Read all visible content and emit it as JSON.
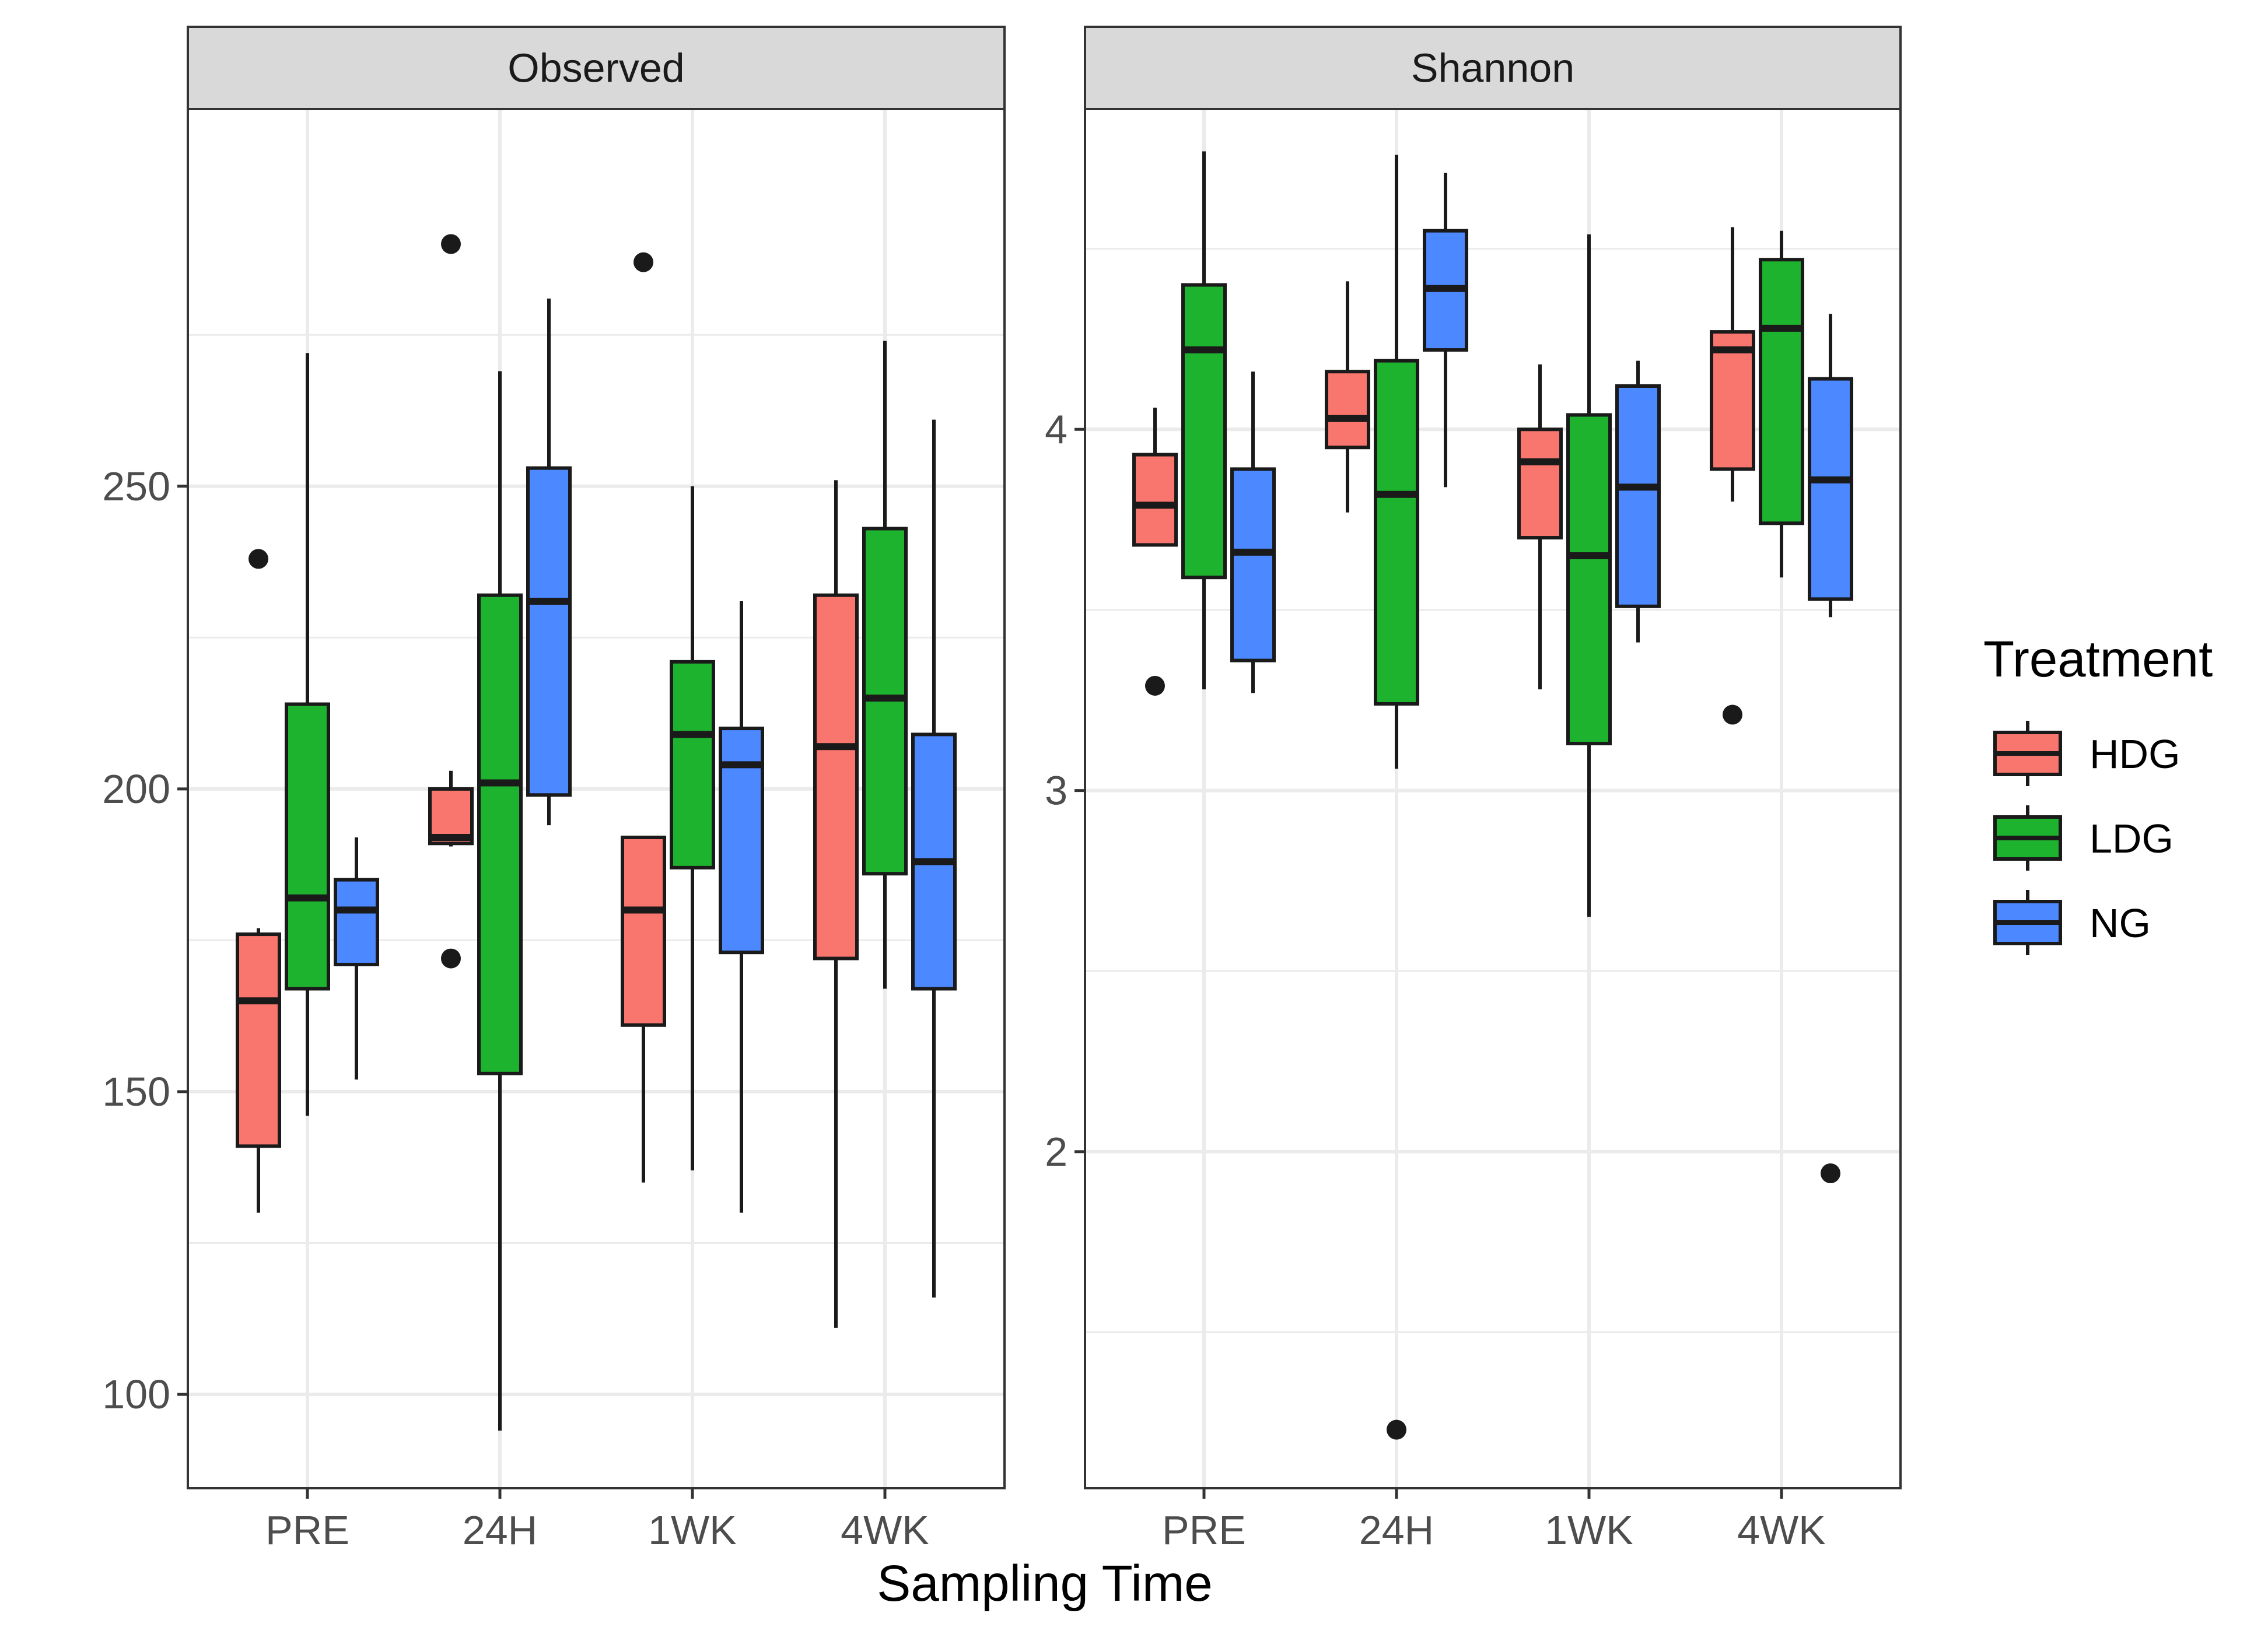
{
  "chart_data": {
    "type": "boxplot",
    "xlabel": "Sampling Time",
    "categories": [
      "PRE",
      "24H",
      "1WK",
      "4WK"
    ],
    "legend": {
      "title": "Treatment",
      "position": "right",
      "entries": [
        "HDG",
        "LDG",
        "NG"
      ]
    },
    "colors": {
      "HDG": "#F8766D",
      "LDG": "#1DB32E",
      "NG": "#4C88FF"
    },
    "facets": [
      {
        "name": "Observed",
        "ylim": [
          84.5,
          312.3
        ],
        "yticks": [
          100,
          150,
          200,
          250
        ],
        "ytick_labels": [
          "100",
          "150",
          "200",
          "250"
        ],
        "series": {
          "HDG": [
            {
              "category": "PRE",
              "whisker_low": 130,
              "q1": 141,
              "median": 165,
              "q3": 176,
              "whisker_high": 177,
              "outliers": [
                238
              ]
            },
            {
              "category": "24H",
              "whisker_low": 190.5,
              "q1": 191,
              "median": 192,
              "q3": 200,
              "whisker_high": 203,
              "outliers": [
                172,
                290
              ]
            },
            {
              "category": "1WK",
              "whisker_low": 135,
              "q1": 161,
              "median": 180,
              "q3": 192,
              "whisker_high": 192,
              "outliers": [
                287
              ]
            },
            {
              "category": "4WK",
              "whisker_low": 111,
              "q1": 172,
              "median": 207,
              "q3": 232,
              "whisker_high": 251,
              "outliers": []
            }
          ],
          "LDG": [
            {
              "category": "PRE",
              "whisker_low": 146,
              "q1": 167,
              "median": 182,
              "q3": 214,
              "whisker_high": 272,
              "outliers": []
            },
            {
              "category": "24H",
              "whisker_low": 94,
              "q1": 153,
              "median": 201,
              "q3": 232,
              "whisker_high": 269,
              "outliers": []
            },
            {
              "category": "1WK",
              "whisker_low": 137,
              "q1": 187,
              "median": 209,
              "q3": 221,
              "whisker_high": 250,
              "outliers": []
            },
            {
              "category": "4WK",
              "whisker_low": 167,
              "q1": 186,
              "median": 215,
              "q3": 243,
              "whisker_high": 274,
              "outliers": []
            }
          ],
          "NG": [
            {
              "category": "PRE",
              "whisker_low": 152,
              "q1": 171,
              "median": 180,
              "q3": 185,
              "whisker_high": 192,
              "outliers": []
            },
            {
              "category": "24H",
              "whisker_low": 194,
              "q1": 199,
              "median": 231,
              "q3": 253,
              "whisker_high": 281,
              "outliers": []
            },
            {
              "category": "1WK",
              "whisker_low": 130,
              "q1": 173,
              "median": 204,
              "q3": 210,
              "whisker_high": 231,
              "outliers": []
            },
            {
              "category": "4WK",
              "whisker_low": 116,
              "q1": 167,
              "median": 188,
              "q3": 209,
              "whisker_high": 261,
              "outliers": []
            }
          ]
        }
      },
      {
        "name": "Shannon",
        "ylim": [
          1.068,
          4.887
        ],
        "yticks": [
          2,
          3,
          4
        ],
        "ytick_labels": [
          "2",
          "3",
          "4"
        ],
        "series": {
          "HDG": [
            {
              "category": "PRE",
              "whisker_low": 3.68,
              "q1": 3.68,
              "median": 3.79,
              "q3": 3.93,
              "whisker_high": 4.06,
              "outliers": [
                3.29
              ]
            },
            {
              "category": "24H",
              "whisker_low": 3.77,
              "q1": 3.95,
              "median": 4.03,
              "q3": 4.16,
              "whisker_high": 4.41,
              "outliers": []
            },
            {
              "category": "1WK",
              "whisker_low": 3.28,
              "q1": 3.7,
              "median": 3.91,
              "q3": 4.0,
              "whisker_high": 4.18,
              "outliers": []
            },
            {
              "category": "4WK",
              "whisker_low": 3.8,
              "q1": 3.89,
              "median": 4.22,
              "q3": 4.27,
              "whisker_high": 4.56,
              "outliers": [
                3.21
              ]
            }
          ],
          "LDG": [
            {
              "category": "PRE",
              "whisker_low": 3.28,
              "q1": 3.59,
              "median": 4.22,
              "q3": 4.4,
              "whisker_high": 4.77,
              "outliers": []
            },
            {
              "category": "24H",
              "whisker_low": 3.06,
              "q1": 3.24,
              "median": 3.82,
              "q3": 4.19,
              "whisker_high": 4.76,
              "outliers": [
                1.23
              ]
            },
            {
              "category": "1WK",
              "whisker_low": 2.65,
              "q1": 3.13,
              "median": 3.65,
              "q3": 4.04,
              "whisker_high": 4.54,
              "outliers": []
            },
            {
              "category": "4WK",
              "whisker_low": 3.59,
              "q1": 3.74,
              "median": 4.28,
              "q3": 4.47,
              "whisker_high": 4.55,
              "outliers": []
            }
          ],
          "NG": [
            {
              "category": "PRE",
              "whisker_low": 3.27,
              "q1": 3.36,
              "median": 3.66,
              "q3": 3.89,
              "whisker_high": 4.16,
              "outliers": []
            },
            {
              "category": "24H",
              "whisker_low": 3.84,
              "q1": 4.22,
              "median": 4.39,
              "q3": 4.55,
              "whisker_high": 4.71,
              "outliers": []
            },
            {
              "category": "1WK",
              "whisker_low": 3.41,
              "q1": 3.51,
              "median": 3.84,
              "q3": 4.12,
              "whisker_high": 4.19,
              "outliers": []
            },
            {
              "category": "4WK",
              "whisker_low": 3.48,
              "q1": 3.53,
              "median": 3.86,
              "q3": 4.14,
              "whisker_high": 4.32,
              "outliers": [
                1.94
              ]
            }
          ]
        }
      }
    ]
  }
}
